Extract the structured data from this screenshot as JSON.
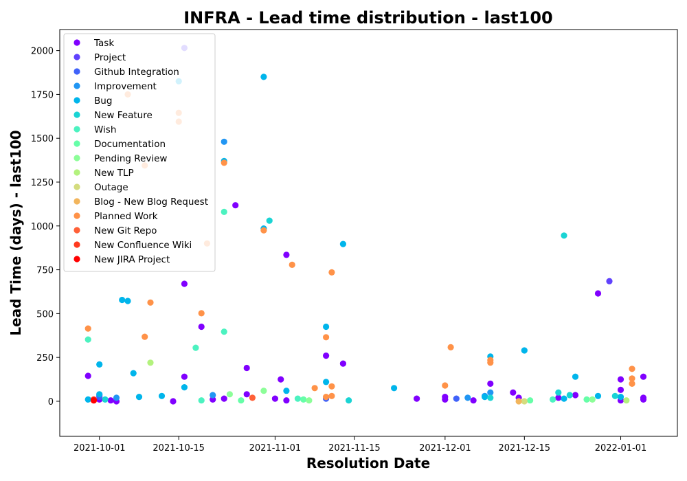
{
  "chart_data": {
    "type": "scatter",
    "title": "INFRA - Lead time distribution - last100",
    "xlabel": "Resolution Date",
    "ylabel": "Lead Time (days) - last100",
    "x_type": "date",
    "xlim": [
      "2021-09-24",
      "2022-01-11"
    ],
    "ylim": [
      -200,
      2120
    ],
    "x_ticks": [
      "2021-10-01",
      "2021-10-15",
      "2021-11-01",
      "2021-11-15",
      "2021-12-01",
      "2021-12-15",
      "2022-01-01"
    ],
    "y_ticks": [
      0,
      250,
      500,
      750,
      1000,
      1250,
      1500,
      1750,
      2000
    ],
    "grid": false,
    "legend_position": "top-left",
    "series": [
      {
        "name": "Task",
        "color": "#8000ff",
        "points": [
          [
            "2021-09-29",
            145
          ],
          [
            "2021-10-01",
            35
          ],
          [
            "2021-10-01",
            10
          ],
          [
            "2021-10-03",
            5
          ],
          [
            "2021-10-04",
            0
          ],
          [
            "2021-10-14",
            0
          ],
          [
            "2021-10-16",
            670
          ],
          [
            "2021-10-16",
            140
          ],
          [
            "2021-10-19",
            425
          ],
          [
            "2021-10-21",
            10
          ],
          [
            "2021-10-23",
            15
          ],
          [
            "2021-10-25",
            1118
          ],
          [
            "2021-10-27",
            40
          ],
          [
            "2021-10-27",
            190
          ],
          [
            "2021-11-01",
            15
          ],
          [
            "2021-11-02",
            125
          ],
          [
            "2021-11-03",
            5
          ],
          [
            "2021-11-03",
            835
          ],
          [
            "2021-11-10",
            260
          ],
          [
            "2021-11-13",
            215
          ],
          [
            "2021-11-26",
            15
          ],
          [
            "2021-12-01",
            25
          ],
          [
            "2021-12-01",
            10
          ],
          [
            "2021-12-06",
            5
          ],
          [
            "2021-12-09",
            100
          ],
          [
            "2021-12-13",
            50
          ],
          [
            "2021-12-14",
            20
          ],
          [
            "2021-12-21",
            20
          ],
          [
            "2021-12-24",
            35
          ],
          [
            "2021-12-28",
            615
          ],
          [
            "2022-01-01",
            5
          ],
          [
            "2022-01-01",
            125
          ],
          [
            "2022-01-01",
            65
          ],
          [
            "2022-01-05",
            10
          ],
          [
            "2022-01-05",
            140
          ],
          [
            "2022-01-05",
            20
          ]
        ]
      },
      {
        "name": "Project",
        "color": "#6042fd",
        "points": [
          [
            "2021-12-30",
            685
          ],
          [
            "2021-10-16",
            2015
          ]
        ]
      },
      {
        "name": "Github Integration",
        "color": "#4062f9",
        "points": [
          [
            "2021-10-01",
            25
          ],
          [
            "2021-11-10",
            15
          ],
          [
            "2021-12-03",
            15
          ]
        ]
      },
      {
        "name": "Improvement",
        "color": "#2196f3",
        "points": [
          [
            "2021-10-23",
            1480
          ],
          [
            "2021-10-21",
            35
          ],
          [
            "2021-12-09",
            50
          ],
          [
            "2021-12-08",
            30
          ],
          [
            "2021-10-04",
            20
          ],
          [
            "2021-12-05",
            20
          ]
        ]
      },
      {
        "name": "Bug",
        "color": "#00b5eb",
        "points": [
          [
            "2021-09-29",
            10
          ],
          [
            "2021-10-01",
            40
          ],
          [
            "2021-10-01",
            210
          ],
          [
            "2021-10-05",
            578
          ],
          [
            "2021-10-06",
            572
          ],
          [
            "2021-10-07",
            160
          ],
          [
            "2021-10-08",
            25
          ],
          [
            "2021-10-12",
            30
          ],
          [
            "2021-10-15",
            1825
          ],
          [
            "2021-10-16",
            80
          ],
          [
            "2021-10-23",
            1370
          ],
          [
            "2021-10-30",
            1850
          ],
          [
            "2021-10-30",
            985
          ],
          [
            "2021-11-03",
            60
          ],
          [
            "2021-11-10",
            425
          ],
          [
            "2021-11-10",
            110
          ],
          [
            "2021-11-13",
            897
          ],
          [
            "2021-11-22",
            75
          ],
          [
            "2021-12-09",
            255
          ],
          [
            "2021-12-15",
            290
          ],
          [
            "2021-12-24",
            140
          ],
          [
            "2021-12-28",
            30
          ],
          [
            "2022-01-01",
            25
          ],
          [
            "2021-12-08",
            25
          ],
          [
            "2021-12-22",
            15
          ]
        ]
      },
      {
        "name": "New Feature",
        "color": "#1ad4d4",
        "points": [
          [
            "2021-10-31",
            1030
          ],
          [
            "2021-12-21",
            50
          ],
          [
            "2021-12-22",
            945
          ],
          [
            "2021-12-23",
            35
          ],
          [
            "2021-12-09",
            20
          ],
          [
            "2021-10-02",
            10
          ],
          [
            "2021-11-14",
            5
          ],
          [
            "2021-12-31",
            30
          ]
        ]
      },
      {
        "name": "Wish",
        "color": "#4cf2c0",
        "points": [
          [
            "2021-09-29",
            352
          ],
          [
            "2021-10-18",
            305
          ],
          [
            "2021-10-23",
            397
          ],
          [
            "2021-10-23",
            1080
          ],
          [
            "2021-11-05",
            15
          ],
          [
            "2021-10-19",
            5
          ],
          [
            "2021-12-20",
            10
          ]
        ]
      },
      {
        "name": "Documentation",
        "color": "#66fea8",
        "points": [
          [
            "2021-10-26",
            5
          ],
          [
            "2021-11-06",
            10
          ],
          [
            "2021-12-16",
            5
          ],
          [
            "2021-12-26",
            10
          ]
        ]
      },
      {
        "name": "Pending Review",
        "color": "#8cfe98",
        "points": [
          [
            "2021-10-24",
            40
          ],
          [
            "2021-10-30",
            60
          ],
          [
            "2021-11-07",
            5
          ],
          [
            "2021-12-27",
            10
          ]
        ]
      },
      {
        "name": "New TLP",
        "color": "#b3f27d",
        "points": [
          [
            "2021-10-10",
            220
          ],
          [
            "2022-01-02",
            5
          ]
        ]
      },
      {
        "name": "Outage",
        "color": "#d4dc7e",
        "points": [
          [
            "2021-12-15",
            0
          ]
        ]
      },
      {
        "name": "Blog - New Blog Request",
        "color": "#f2b55c",
        "points": [
          [
            "2021-09-30",
            5
          ],
          [
            "2021-12-14",
            0
          ]
        ]
      },
      {
        "name": "Planned Work",
        "color": "#ff9248",
        "points": [
          [
            "2021-09-29",
            415
          ],
          [
            "2021-10-09",
            368
          ],
          [
            "2021-10-10",
            563
          ],
          [
            "2021-10-19",
            502
          ],
          [
            "2021-10-23",
            1360
          ],
          [
            "2021-10-30",
            975
          ],
          [
            "2021-11-04",
            778
          ],
          [
            "2021-11-10",
            365
          ],
          [
            "2021-11-10",
            25
          ],
          [
            "2021-11-11",
            735
          ],
          [
            "2021-11-11",
            85
          ],
          [
            "2021-11-11",
            30
          ],
          [
            "2021-11-08",
            75
          ],
          [
            "2021-12-01",
            90
          ],
          [
            "2021-12-02",
            308
          ],
          [
            "2021-12-09",
            220
          ],
          [
            "2021-12-09",
            235
          ],
          [
            "2022-01-03",
            185
          ],
          [
            "2022-01-03",
            100
          ],
          [
            "2022-01-03",
            130
          ],
          [
            "2021-10-06",
            1750
          ],
          [
            "2021-10-15",
            1645
          ],
          [
            "2021-10-15",
            1595
          ],
          [
            "2021-10-09",
            1345
          ],
          [
            "2021-10-20",
            900
          ]
        ]
      },
      {
        "name": "New Git Repo",
        "color": "#ff6037",
        "points": [
          [
            "2021-10-28",
            20
          ]
        ]
      },
      {
        "name": "New Confluence Wiki",
        "color": "#ff3a1f",
        "points": [
          [
            "2021-09-30",
            10
          ]
        ]
      },
      {
        "name": "New JIRA Project",
        "color": "#ff0000",
        "points": [
          [
            "2021-09-30",
            5
          ]
        ]
      }
    ]
  }
}
